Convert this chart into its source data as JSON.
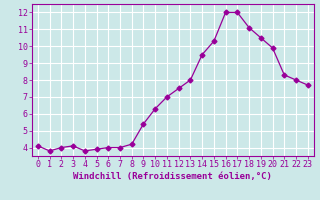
{
  "x": [
    0,
    1,
    2,
    3,
    4,
    5,
    6,
    7,
    8,
    9,
    10,
    11,
    12,
    13,
    14,
    15,
    16,
    17,
    18,
    19,
    20,
    21,
    22,
    23
  ],
  "y": [
    4.1,
    3.8,
    4.0,
    4.1,
    3.8,
    3.9,
    4.0,
    4.0,
    4.2,
    5.4,
    6.3,
    7.0,
    7.5,
    8.0,
    9.5,
    10.3,
    12.0,
    12.0,
    11.1,
    10.5,
    9.9,
    8.3,
    8.0,
    7.7
  ],
  "line_color": "#990099",
  "marker": "D",
  "marker_size": 2.5,
  "xlabel": "Windchill (Refroidissement éolien,°C)",
  "ylim": [
    3.5,
    12.5
  ],
  "xlim": [
    -0.5,
    23.5
  ],
  "yticks": [
    4,
    5,
    6,
    7,
    8,
    9,
    10,
    11,
    12
  ],
  "xtick_labels": [
    "0",
    "1",
    "2",
    "3",
    "4",
    "5",
    "6",
    "7",
    "8",
    "9",
    "10",
    "11",
    "12",
    "13",
    "14",
    "15",
    "16",
    "17",
    "18",
    "19",
    "20",
    "21",
    "22",
    "23"
  ],
  "background_color": "#cce8e8",
  "grid_color": "#ffffff",
  "tick_fontsize": 6,
  "xlabel_fontsize": 6.5
}
